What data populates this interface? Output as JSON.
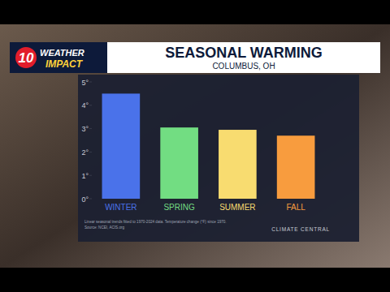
{
  "header": {
    "logo_number": "10",
    "logo_line1": "WEATHER",
    "logo_line2": "IMPACT"
  },
  "chart_data": {
    "type": "bar",
    "title": "SEASONAL WARMING",
    "subtitle": "COLUMBUS, OH",
    "categories": [
      "WINTER",
      "SPRING",
      "SUMMER",
      "FALL"
    ],
    "values": [
      4.5,
      3.05,
      2.95,
      2.7
    ],
    "colors": [
      "#4a72ea",
      "#72dd82",
      "#f8dc70",
      "#f89c3e"
    ],
    "ylim": [
      0,
      5
    ],
    "yticks": [
      {
        "value": 0,
        "label": "0°"
      },
      {
        "value": 1,
        "label": "1°"
      },
      {
        "value": 2,
        "label": "2°"
      },
      {
        "value": 3,
        "label": "3°"
      },
      {
        "value": 4,
        "label": "4°"
      },
      {
        "value": 5,
        "label": "5°"
      }
    ],
    "grid": false,
    "data_labels": false,
    "annotations": [
      "Linear seasonal trends fitted to 1970-2024 data. Temperature change (°F) since 1970.",
      "Source: NCEI, ACIS.org",
      "CLIMATE CENTRAL"
    ]
  }
}
